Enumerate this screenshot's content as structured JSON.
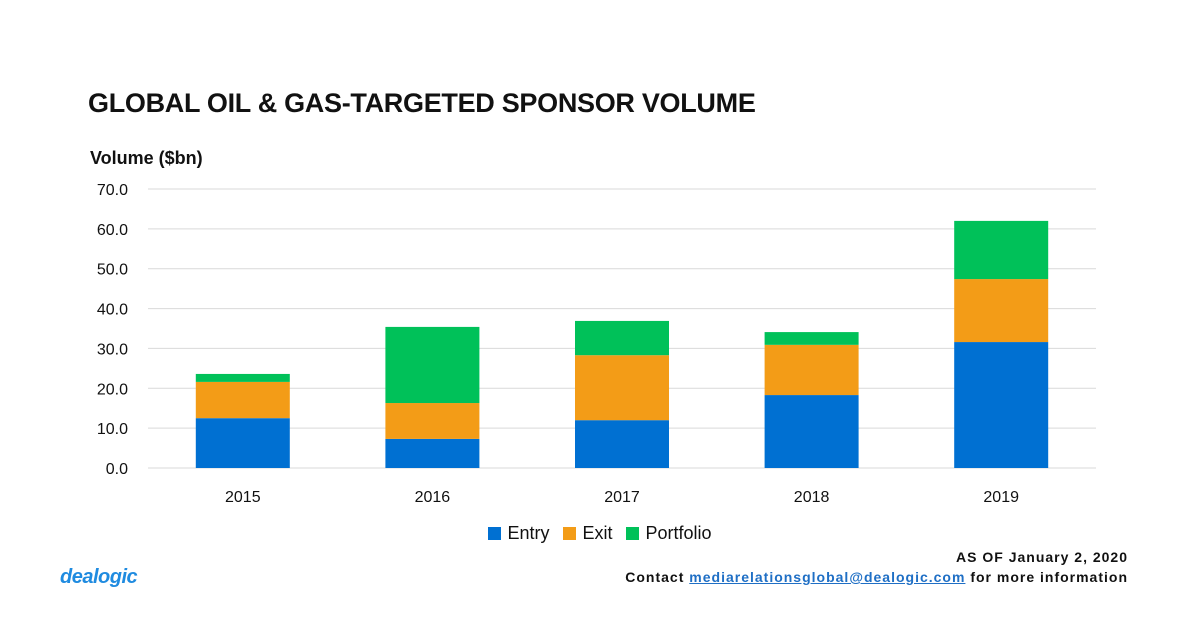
{
  "chart_data": {
    "type": "bar",
    "stacked": true,
    "title": "GLOBAL OIL & GAS-TARGETED SPONSOR VOLUME",
    "ylabel": "Volume ($bn)",
    "xlabel": "",
    "categories": [
      "2015",
      "2016",
      "2017",
      "2018",
      "2019"
    ],
    "series": [
      {
        "name": "Entry",
        "color": "#0070d2",
        "values": [
          12.5,
          7.3,
          12.0,
          18.3,
          31.6
        ]
      },
      {
        "name": "Exit",
        "color": "#f39c17",
        "values": [
          9.1,
          9.0,
          16.3,
          12.6,
          15.8
        ]
      },
      {
        "name": "Portfolio",
        "color": "#00c159",
        "values": [
          2.0,
          19.1,
          8.6,
          3.2,
          14.6
        ]
      }
    ],
    "ylim": [
      0,
      70
    ],
    "yticks": [
      "0.0",
      "10.0",
      "20.0",
      "30.0",
      "40.0",
      "50.0",
      "60.0",
      "70.0"
    ],
    "grid": true,
    "legend_position": "bottom"
  },
  "footer": {
    "as_of": "AS OF January 2, 2020",
    "contact_prefix": "Contact",
    "contact_email": "mediarelationsglobal@dealogic.com",
    "contact_suffix": "for more information",
    "logo": "dealogic"
  }
}
